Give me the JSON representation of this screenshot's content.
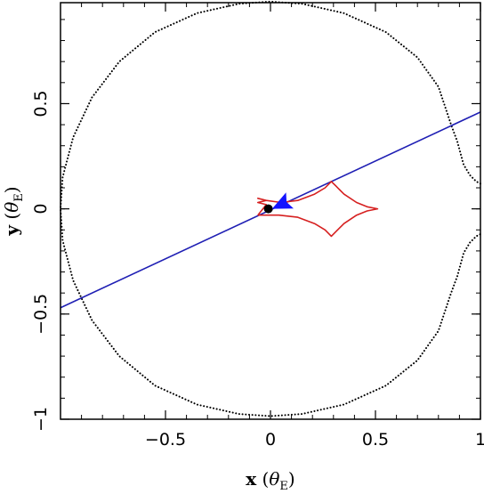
{
  "chart_data": {
    "type": "scatter",
    "title": "",
    "xlabel": {
      "main": "x",
      "open": " (",
      "greek": "θ",
      "sub": "E",
      "close": ")"
    },
    "ylabel": {
      "main": "y",
      "open": " (",
      "greek": "θ",
      "sub": "E",
      "close": ")"
    },
    "xlim": [
      -1.0,
      1.0
    ],
    "ylim": [
      -1.0,
      0.98
    ],
    "xticks": [
      {
        "value": -0.5,
        "label": "−0.5"
      },
      {
        "value": 0,
        "label": "0"
      },
      {
        "value": 0.5,
        "label": "0.5"
      },
      {
        "value": 1,
        "label": "1"
      }
    ],
    "yticks": [
      {
        "value": -1,
        "label": "−1"
      },
      {
        "value": -0.5,
        "label": "−0.5"
      },
      {
        "value": 0,
        "label": "0"
      },
      {
        "value": 0.5,
        "label": "0.5"
      }
    ],
    "grid": false,
    "series": [
      {
        "kind": "einstein-ring-dotted",
        "color": "#000000",
        "segments": [
          [
            [
              1.0,
              0.12
            ],
            [
              0.98,
              0.13
            ],
            [
              0.95,
              0.16
            ],
            [
              0.92,
              0.21
            ],
            [
              0.89,
              0.32
            ],
            [
              0.86,
              0.4
            ],
            [
              0.8,
              0.58
            ],
            [
              0.7,
              0.72
            ],
            [
              0.55,
              0.84
            ],
            [
              0.35,
              0.93
            ],
            [
              0.15,
              0.975
            ],
            [
              0.0,
              0.985
            ],
            [
              -0.15,
              0.975
            ],
            [
              -0.35,
              0.93
            ],
            [
              -0.55,
              0.84
            ],
            [
              -0.72,
              0.7
            ],
            [
              -0.85,
              0.53
            ],
            [
              -0.94,
              0.34
            ],
            [
              -0.99,
              0.15
            ],
            [
              -1.0,
              0.0
            ],
            [
              -0.99,
              -0.15
            ],
            [
              -0.94,
              -0.34
            ],
            [
              -0.85,
              -0.53
            ],
            [
              -0.72,
              -0.7
            ],
            [
              -0.55,
              -0.84
            ],
            [
              -0.35,
              -0.93
            ],
            [
              -0.15,
              -0.975
            ],
            [
              0.0,
              -0.985
            ],
            [
              0.15,
              -0.975
            ],
            [
              0.35,
              -0.93
            ],
            [
              0.55,
              -0.84
            ],
            [
              0.7,
              -0.72
            ],
            [
              0.8,
              -0.58
            ],
            [
              0.86,
              -0.4
            ],
            [
              0.89,
              -0.32
            ],
            [
              0.92,
              -0.21
            ],
            [
              0.95,
              -0.16
            ],
            [
              0.98,
              -0.13
            ],
            [
              1.0,
              -0.12
            ]
          ]
        ]
      },
      {
        "kind": "source-trajectory",
        "color": "#1f1fb4",
        "points": [
          [
            -1.0,
            -0.47
          ],
          [
            1.0,
            0.46
          ]
        ]
      },
      {
        "kind": "caustic",
        "color": "#d62020",
        "points": [
          [
            -0.06,
            -0.03
          ],
          [
            0.04,
            -0.03
          ],
          [
            0.13,
            -0.04
          ],
          [
            0.21,
            -0.07
          ],
          [
            0.26,
            -0.1
          ],
          [
            0.29,
            -0.13
          ],
          [
            0.31,
            -0.11
          ],
          [
            0.35,
            -0.07
          ],
          [
            0.41,
            -0.03
          ],
          [
            0.46,
            -0.01
          ],
          [
            0.51,
            0.0
          ],
          [
            0.46,
            0.01
          ],
          [
            0.41,
            0.03
          ],
          [
            0.35,
            0.07
          ],
          [
            0.31,
            0.11
          ],
          [
            0.29,
            0.13
          ],
          [
            0.26,
            0.1
          ],
          [
            0.21,
            0.07
          ],
          [
            0.13,
            0.04
          ],
          [
            0.05,
            0.03
          ],
          [
            -0.02,
            0.04
          ],
          [
            -0.06,
            0.05
          ],
          [
            -0.02,
            0.04
          ],
          [
            -0.06,
            0.03
          ],
          [
            -0.02,
            0.02
          ],
          [
            -0.06,
            -0.03
          ]
        ]
      }
    ],
    "markers": [
      {
        "kind": "lens-mass",
        "x": -0.01,
        "y": 0.0,
        "color": "#000000"
      },
      {
        "kind": "direction-arrow",
        "x": 0.05,
        "y": 0.02,
        "color": "#1414ff"
      }
    ],
    "annotations": []
  }
}
